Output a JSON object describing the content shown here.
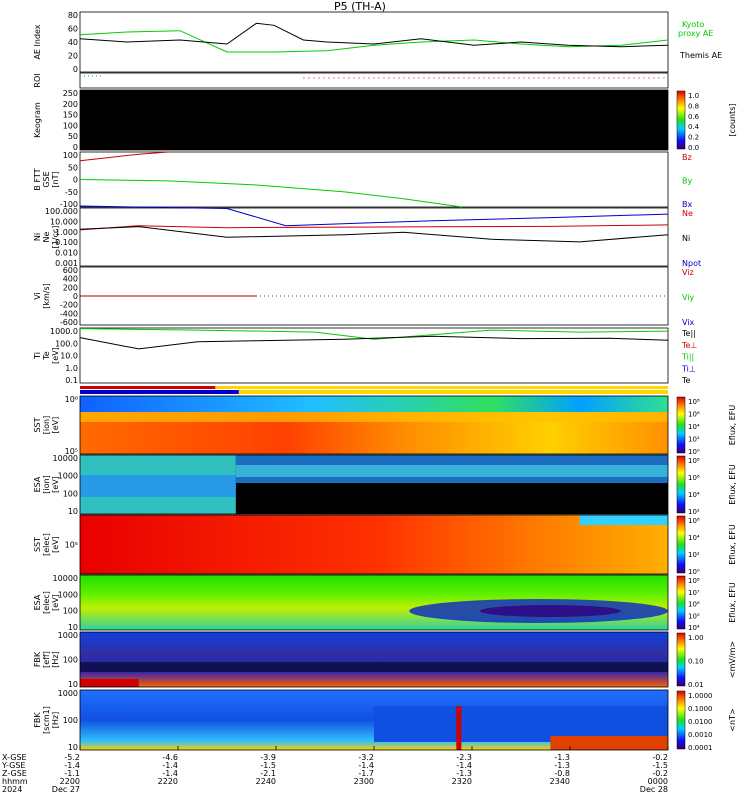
{
  "title": "P5 (TH-A)",
  "chart_data": {
    "type": "multi-panel-stackplot",
    "time_range": [
      "2024-12-27 22:00",
      "2024-12-28 00:00"
    ],
    "panels": [
      {
        "id": "ae",
        "type": "line",
        "ylabel": "AE Index",
        "ylim": [
          -10,
          80
        ],
        "yticks": [
          "80",
          "60",
          "40",
          "20",
          "0"
        ],
        "series": [
          {
            "name": "Kyoto proxy AE",
            "color": "#00cc00",
            "x": [
              0,
              0.08,
              0.17,
              0.25,
              0.33,
              0.42,
              0.5,
              0.58,
              0.67,
              0.75,
              0.83,
              0.92,
              1.0
            ],
            "values": [
              46,
              50,
              52,
              20,
              20,
              22,
              30,
              35,
              38,
              32,
              28,
              30,
              38
            ]
          },
          {
            "name": "Themis AE",
            "color": "#000000",
            "x": [
              0,
              0.08,
              0.17,
              0.25,
              0.3,
              0.33,
              0.38,
              0.42,
              0.5,
              0.58,
              0.67,
              0.75,
              0.83,
              0.92,
              1.0
            ],
            "values": [
              40,
              35,
              38,
              32,
              63,
              60,
              38,
              35,
              32,
              40,
              30,
              35,
              30,
              28,
              30
            ]
          }
        ],
        "legend": [
          "Kyoto",
          "proxy AE",
          "Themis AE"
        ]
      },
      {
        "id": "roi",
        "ylabel": "ROI"
      },
      {
        "id": "keogram",
        "type": "heatmap",
        "ylabel": "Keogram",
        "yticks": [
          "250",
          "200",
          "150",
          "100",
          "50",
          "0"
        ],
        "colorbar": {
          "label": "[counts]",
          "ticks": [
            "1.0",
            "0.8",
            "0.6",
            "0.4",
            "0.2",
            "0.0"
          ]
        }
      },
      {
        "id": "bfield",
        "type": "line",
        "ylabel": [
          "B FTT",
          "GSE",
          "[nT]"
        ],
        "ylim": [
          -100,
          100
        ],
        "yticks": [
          "100",
          "50",
          "0",
          "-50",
          "-100"
        ],
        "series": [
          {
            "name": "Bz",
            "color": "#cc0000",
            "x": [
              0,
              0.05,
              0.1,
              0.15
            ],
            "values": [
              68,
              80,
              92,
              100
            ]
          },
          {
            "name": "By",
            "color": "#00cc00",
            "x": [
              0,
              0.15,
              0.3,
              0.45,
              0.55,
              0.65
            ],
            "values": [
              0,
              -5,
              -20,
              -45,
              -70,
              -100
            ]
          },
          {
            "name": "Bx",
            "color": "#0000cc",
            "x": [],
            "values": []
          }
        ]
      },
      {
        "id": "density",
        "type": "line",
        "log": true,
        "ylabel": [
          "Ni",
          "Ne",
          "[1/cc]"
        ],
        "yticks": [
          "100.000",
          "10.000",
          "1.000",
          "0.100",
          "0.010",
          "0.001"
        ],
        "series": [
          {
            "name": "Ne",
            "color": "#cc0000",
            "x": [
              0,
              0.1,
              0.25,
              0.4,
              0.6,
              0.8,
              1.0
            ],
            "values": [
              1.3,
              3,
              2,
              2.2,
              2.4,
              2.6,
              3.5
            ]
          },
          {
            "name": "Ni",
            "color": "#000000",
            "x": [
              0,
              0.1,
              0.25,
              0.45,
              0.55,
              0.7,
              0.85,
              1.0
            ],
            "values": [
              1.5,
              2.5,
              0.3,
              0.5,
              0.8,
              0.2,
              0.12,
              0.5
            ]
          },
          {
            "name": "Npot",
            "color": "#0000cc",
            "x": [
              0,
              0.1,
              0.25,
              0.35,
              0.6,
              0.8,
              1.0
            ],
            "values": [
              150,
              120,
              90,
              3,
              8,
              15,
              30
            ]
          }
        ]
      },
      {
        "id": "velocity",
        "type": "line",
        "ylabel": [
          "Vi",
          "[km/s]"
        ],
        "ylim": [
          -700,
          700
        ],
        "yticks": [
          "600",
          "400",
          "200",
          "0",
          "-200",
          "-400",
          "-600"
        ],
        "series": [
          {
            "name": "Viz",
            "color": "#cc0000",
            "x": [
              0.0,
              0.3
            ],
            "values": [
              0,
              0
            ]
          },
          {
            "name": "Viy",
            "color": "#00cc00",
            "x": [],
            "values": []
          },
          {
            "name": "Vix",
            "color": "#0000cc",
            "x": [],
            "values": []
          }
        ]
      },
      {
        "id": "temperature",
        "type": "line",
        "log": true,
        "ylabel": [
          "Ti",
          "Te",
          "[eV]"
        ],
        "yticks": [
          "1000.0",
          "100.0",
          "10.0",
          "1.0",
          "0.1"
        ],
        "series": [
          {
            "name": "Te||",
            "color": "#000000",
            "x": [],
            "values": []
          },
          {
            "name": "Te⊥",
            "color": "#cc0000",
            "x": [],
            "values": []
          },
          {
            "name": "Ti||",
            "color": "#00cc00",
            "x": [
              0,
              0.2,
              0.4,
              0.5,
              0.7,
              0.85,
              1.0
            ],
            "values": [
              900,
              700,
              500,
              150,
              700,
              500,
              600
            ]
          },
          {
            "name": "Ti⊥",
            "color": "#0000cc",
            "x": [],
            "values": []
          },
          {
            "name": "Te",
            "color": "#000000",
            "x": [
              0,
              0.1,
              0.2,
              0.3,
              0.45,
              0.6,
              0.75,
              0.9,
              1.0
            ],
            "values": [
              200,
              30,
              100,
              120,
              150,
              250,
              170,
              180,
              130
            ]
          }
        ]
      },
      {
        "id": "sst-ion",
        "type": "heatmap",
        "ylabel": [
          "SST",
          "[ion]",
          "[eV]"
        ],
        "yticks": [
          "10⁶",
          "10⁵"
        ],
        "colorbar": {
          "label": "Eflux, EFU",
          "ticks": [
            "10⁸",
            "10⁶",
            "10⁴",
            "10²",
            "10⁰"
          ]
        }
      },
      {
        "id": "esa-ion",
        "type": "heatmap",
        "ylabel": [
          "ESA",
          "[ion]",
          "[eV]"
        ],
        "yticks": [
          "10000",
          "1000",
          "100",
          "10"
        ],
        "colorbar": {
          "label": "Eflux, EFU",
          "ticks": [
            "10⁸",
            "10⁶",
            "10⁴",
            "10²"
          ]
        }
      },
      {
        "id": "sst-elec",
        "type": "heatmap",
        "ylabel": [
          "SST",
          "[elec]",
          "[eV]"
        ],
        "yticks": [
          "10⁵"
        ],
        "colorbar": {
          "label": "Eflux, EFU",
          "ticks": [
            "10⁶",
            "10⁴",
            "10²",
            "10⁰"
          ]
        }
      },
      {
        "id": "esa-elec",
        "type": "heatmap",
        "ylabel": [
          "ESA",
          "[elec]",
          "[eV]"
        ],
        "yticks": [
          "10000",
          "1000",
          "100",
          "10"
        ],
        "colorbar": {
          "label": "Eflux, EFU",
          "ticks": [
            "10⁸",
            "10⁷",
            "10⁶",
            "10⁵",
            "10⁴"
          ]
        }
      },
      {
        "id": "fbk-e",
        "type": "heatmap",
        "ylabel": [
          "FBK",
          "[eff]",
          "[Hz]"
        ],
        "yticks": [
          "1000",
          "100",
          "10"
        ],
        "colorbar": {
          "label": "<mV/m>",
          "ticks": [
            "1.00",
            "0.10",
            "0.01"
          ]
        }
      },
      {
        "id": "fbk-b",
        "type": "heatmap",
        "ylabel": [
          "FBK",
          "[scm1]",
          "[Hz]"
        ],
        "yticks": [
          "1000",
          "100",
          "10"
        ],
        "colorbar": {
          "label": "<nT>",
          "ticks": [
            "1.0000",
            "0.1000",
            "0.0100",
            "0.0010",
            "0.0001"
          ]
        }
      }
    ],
    "x_axis": {
      "row_labels": [
        "X-GSE",
        "Y-GSE",
        "Z-GSE",
        "hhmm",
        "2024"
      ],
      "ticks": [
        {
          "rows": [
            "-5.2",
            "-1.4",
            "-1.1",
            "2200",
            "Dec 27"
          ]
        },
        {
          "rows": [
            "-4.6",
            "-1.4",
            "-1.4",
            "2220",
            ""
          ]
        },
        {
          "rows": [
            "-3.9",
            "-1.5",
            "-2.1",
            "2240",
            ""
          ]
        },
        {
          "rows": [
            "-3.2",
            "-1.4",
            "-1.7",
            "2300",
            ""
          ]
        },
        {
          "rows": [
            "-2.3",
            "-1.4",
            "-1.3",
            "2320",
            ""
          ]
        },
        {
          "rows": [
            "-1.3",
            "-1.3",
            "-0.8",
            "2340",
            ""
          ]
        },
        {
          "rows": [
            "-0.2",
            "-1.5",
            "-0.2",
            "0000",
            "Dec 28"
          ]
        }
      ]
    }
  }
}
